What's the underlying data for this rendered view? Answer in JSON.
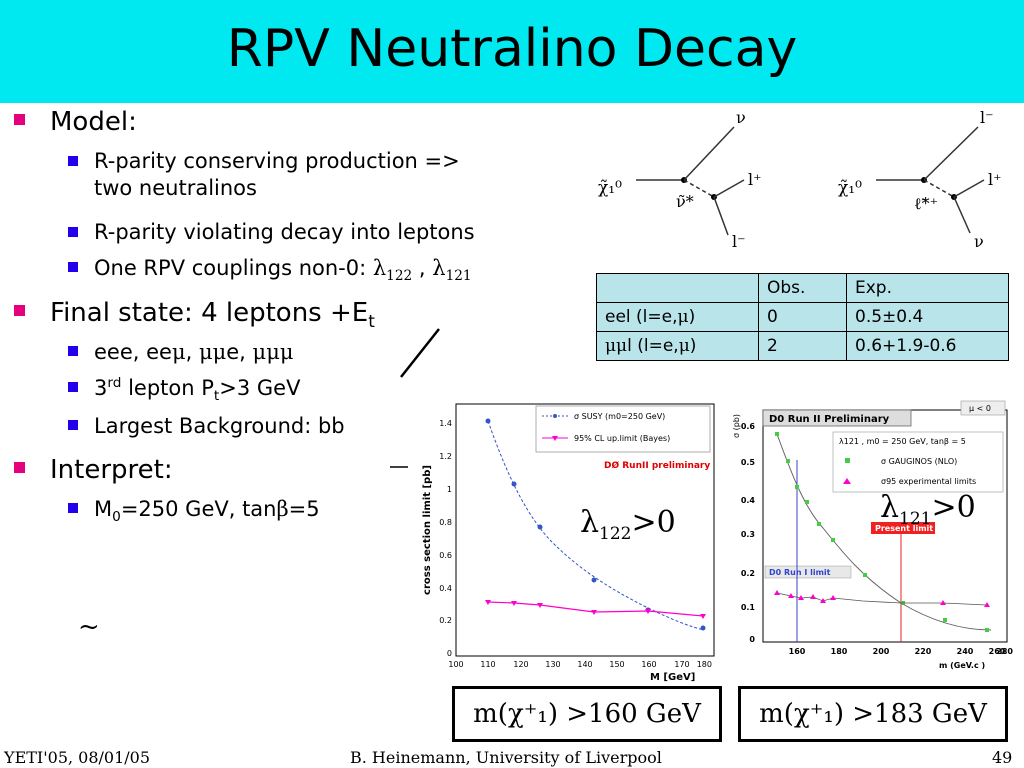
{
  "title": "RPV Neutralino Decay",
  "bullets": {
    "model": "Model:",
    "model_sub1_line1": "R-parity conserving production =>",
    "model_sub1_line2": "two neutralinos",
    "model_sub2": "R-parity violating decay into leptons",
    "model_sub3_prefix": "One RPV couplings non-0:",
    "final_state": "Final state: 4 leptons +E",
    "final_state_sub": "t",
    "fs_sub1_prefix": "eee, ee",
    "fs_sub2_rest": "lepton P",
    "fs_sub2_end": ">3 GeV",
    "fs_sub3": "Largest Background: bb",
    "interpret": "Interpret:",
    "interp_sub1_a": "M",
    "interp_sub1_b": "=250 GeV, tan",
    "interp_sub1_c": "=5"
  },
  "diagrams": {
    "left": {
      "in": "χ̃₁⁰",
      "prop": "ν̃*",
      "out_top": "ν",
      "out_mid": "l⁺",
      "out_bot": "l⁻"
    },
    "right": {
      "in": "χ̃₁⁰",
      "prop": "ℓ̃*⁺",
      "out_top": "l⁻",
      "out_mid": "l⁺",
      "out_bot": "ν"
    }
  },
  "table": {
    "headers": [
      "",
      "Obs.",
      "Exp."
    ],
    "rows": [
      {
        "label_prefix": "eel (l=e,",
        "label_suffix": ")",
        "obs": "0",
        "exp": "0.5±0.4"
      },
      {
        "label_prefix": "l (l=e,",
        "label_suffix": ")",
        "obs": "2",
        "exp": "0.6+1.9-0.6"
      }
    ]
  },
  "plot_left": {
    "ylabel": "cross section limit [pb]",
    "xlabel": "M [GeV]",
    "legend1": "σ SUSY (m0=250 GeV)",
    "legend2": "95% CL up.limit (Bayes)",
    "prelim": "DØ RunII preliminary",
    "yticks": [
      "0",
      "0.2",
      "0.4",
      "0.6",
      "0.8",
      "1",
      "1.2",
      "1.4"
    ],
    "xticks": [
      "100",
      "110",
      "120",
      "130",
      "140",
      "150",
      "160",
      "170",
      "180"
    ],
    "annot": "λ122>0",
    "color_sigma": "#3355cc",
    "color_limit": "#ff00cc"
  },
  "plot_right": {
    "title": "D0 Run II Preliminary",
    "mu": "μ < 0",
    "ylabel": "σ (pb)",
    "xlabel": "m (GeV.c )",
    "legend_head": "λ121 , m0 = 250 GeV, tanβ = 5",
    "legend1": "σ GAUGINOS (NLO)",
    "legend2": "σ95 experimental limits",
    "present": "Present limit",
    "run1": "D0 Run I limit",
    "yticks": [
      "0",
      "0.1",
      "0.2",
      "0.3",
      "0.4",
      "0.5",
      "0.6"
    ],
    "xticks": [
      "160",
      "180",
      "200",
      "220",
      "240",
      "260",
      "280"
    ],
    "annot": "λ121>0",
    "color_green": "#44cc44",
    "color_limit": "#ff00cc",
    "color_present": "#ee2222",
    "color_run1": "#3344cc"
  },
  "boxes": {
    "left": "m(χ⁺₁) >160 GeV",
    "right": "m(χ⁺₁) >183 GeV"
  },
  "footer": {
    "left": "YETI'05, 08/01/05",
    "center": "B. Heinemann, University of Liverpool",
    "right": "49"
  }
}
